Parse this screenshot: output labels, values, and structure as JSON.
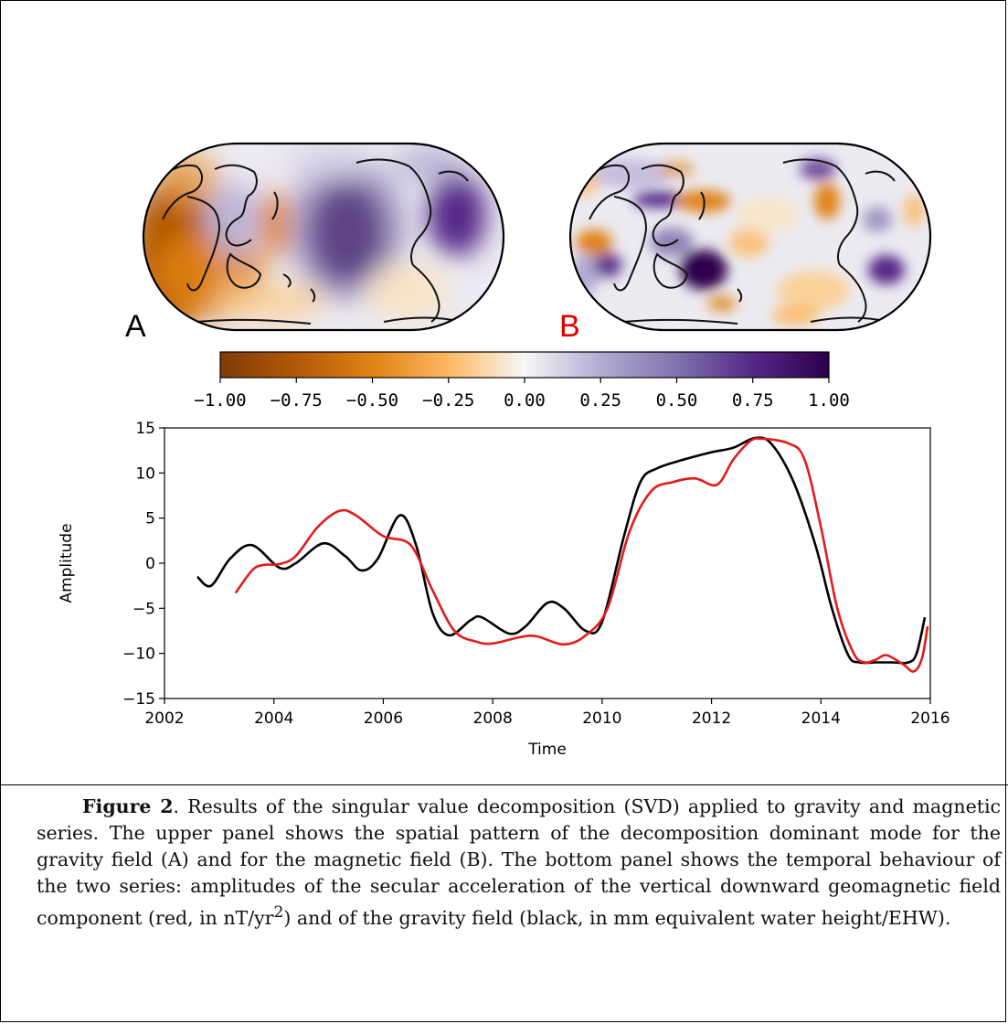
{
  "maps": {
    "label_a": "A",
    "label_b": "B",
    "label_b_color": "#e00000",
    "colormap": "PuOr (orange → white → purple)"
  },
  "colorbar": {
    "ticks": [
      "−1.00",
      "−0.75",
      "−0.50",
      "−0.25",
      "0.00",
      "0.25",
      "0.50",
      "0.75",
      "1.00"
    ],
    "min": -1.0,
    "max": 1.0
  },
  "chart_data": {
    "type": "line",
    "title": "",
    "xlabel": "Time",
    "ylabel": "Amplitude",
    "xlim": [
      2002,
      2016
    ],
    "ylim": [
      -15,
      15
    ],
    "x_ticks": [
      "2002",
      "2004",
      "2006",
      "2008",
      "2010",
      "2012",
      "2014",
      "2016"
    ],
    "y_ticks": [
      "15",
      "10",
      "5",
      "0",
      "−5",
      "−10",
      "−15"
    ],
    "grid": false,
    "series": [
      {
        "color": "#000000",
        "points": [
          [
            2002.6,
            -1.5
          ],
          [
            2002.85,
            -2.5
          ],
          [
            2003.2,
            0.5
          ],
          [
            2003.6,
            2.0
          ],
          [
            2004.1,
            -0.5
          ],
          [
            2004.4,
            0.0
          ],
          [
            2004.9,
            2.2
          ],
          [
            2005.3,
            0.8
          ],
          [
            2005.6,
            -0.8
          ],
          [
            2005.9,
            0.5
          ],
          [
            2006.3,
            5.3
          ],
          [
            2006.6,
            2.0
          ],
          [
            2006.9,
            -5.5
          ],
          [
            2007.2,
            -8.0
          ],
          [
            2007.6,
            -6.3
          ],
          [
            2007.8,
            -6.0
          ],
          [
            2008.3,
            -7.8
          ],
          [
            2008.6,
            -7.0
          ],
          [
            2009.0,
            -4.4
          ],
          [
            2009.3,
            -5.0
          ],
          [
            2009.7,
            -7.5
          ],
          [
            2010.0,
            -6.5
          ],
          [
            2010.4,
            3.0
          ],
          [
            2010.7,
            9.0
          ],
          [
            2011.0,
            10.5
          ],
          [
            2011.5,
            11.5
          ],
          [
            2012.0,
            12.3
          ],
          [
            2012.4,
            12.8
          ],
          [
            2012.8,
            13.9
          ],
          [
            2013.1,
            13.2
          ],
          [
            2013.5,
            9.0
          ],
          [
            2013.9,
            2.0
          ],
          [
            2014.2,
            -5.0
          ],
          [
            2014.5,
            -10.2
          ],
          [
            2014.7,
            -11.0
          ],
          [
            2015.0,
            -11.0
          ],
          [
            2015.3,
            -11.0
          ],
          [
            2015.6,
            -11.0
          ],
          [
            2015.75,
            -10.0
          ],
          [
            2015.9,
            -6.0
          ]
        ]
      },
      {
        "color": "#e41a1c",
        "points": [
          [
            2003.3,
            -3.3
          ],
          [
            2003.6,
            -0.8
          ],
          [
            2003.8,
            -0.2
          ],
          [
            2004.1,
            -0.1
          ],
          [
            2004.4,
            0.8
          ],
          [
            2004.8,
            4.0
          ],
          [
            2005.2,
            5.8
          ],
          [
            2005.5,
            5.3
          ],
          [
            2006.0,
            3.0
          ],
          [
            2006.5,
            2.0
          ],
          [
            2006.9,
            -3.0
          ],
          [
            2007.3,
            -7.5
          ],
          [
            2007.7,
            -8.7
          ],
          [
            2008.0,
            -8.9
          ],
          [
            2008.5,
            -8.2
          ],
          [
            2008.8,
            -8.1
          ],
          [
            2009.3,
            -9.0
          ],
          [
            2009.7,
            -8.0
          ],
          [
            2010.1,
            -5.0
          ],
          [
            2010.5,
            3.5
          ],
          [
            2010.9,
            8.0
          ],
          [
            2011.3,
            9.0
          ],
          [
            2011.7,
            9.4
          ],
          [
            2012.1,
            8.7
          ],
          [
            2012.4,
            11.5
          ],
          [
            2012.7,
            13.5
          ],
          [
            2012.9,
            13.8
          ],
          [
            2013.4,
            13.3
          ],
          [
            2013.7,
            11.5
          ],
          [
            2014.0,
            4.0
          ],
          [
            2014.3,
            -5.0
          ],
          [
            2014.6,
            -10.0
          ],
          [
            2014.8,
            -11.0
          ],
          [
            2015.0,
            -10.7
          ],
          [
            2015.2,
            -10.2
          ],
          [
            2015.5,
            -11.2
          ],
          [
            2015.7,
            -12.0
          ],
          [
            2015.85,
            -10.5
          ],
          [
            2015.95,
            -7.0
          ]
        ]
      }
    ]
  },
  "caption": {
    "figure_label": "Figure 2",
    "text": ". Results of the singular value decomposition (SVD) applied to gravity and magnetic series. The upper panel shows the spatial pattern of the decomposition dominant mode for the gravity field (A) and for the magnetic field (B). The bottom panel shows the temporal behaviour of the two series: amplitudes of the secular acceleration of the vertical downward geomagnetic field component (red, in nT/yr",
    "superscript": "2",
    "text_end": ") and of the gravity field (black, in mm equivalent water height/EHW)."
  }
}
